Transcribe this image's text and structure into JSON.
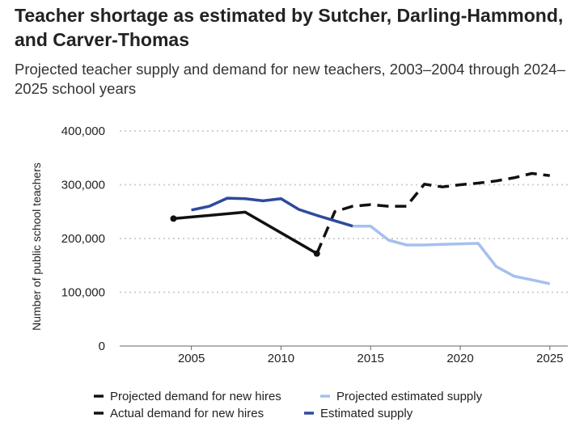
{
  "chart_data": {
    "type": "line",
    "title": "Teacher shortage as estimated by Sutcher, Darling-Hammond, and Carver-Thomas",
    "subtitle": "Projected teacher supply and demand for new teachers, 2003–2004 through 2024–2025 school years",
    "xlabel": "",
    "ylabel": "Number of public school teachers",
    "xlim": [
      2001,
      2026
    ],
    "ylim": [
      0,
      400000
    ],
    "x_ticks": [
      "2005",
      "2010",
      "2015",
      "2020",
      "2025"
    ],
    "y_ticks": [
      "0",
      "100,000",
      "200,000",
      "300,000",
      "400,000"
    ],
    "grid": true,
    "legend_position": "bottom",
    "series": [
      {
        "name": "Projected demand for new hires",
        "color": "#111111",
        "style": "dashed",
        "x": [
          2012,
          2013,
          2014,
          2015,
          2016,
          2017,
          2018,
          2019,
          2020,
          2021,
          2022,
          2023,
          2024,
          2025
        ],
        "y": [
          172000,
          250000,
          260000,
          263000,
          260000,
          260000,
          301000,
          296000,
          300000,
          303000,
          307000,
          313000,
          321000,
          317000
        ]
      },
      {
        "name": "Projected estimated supply",
        "color": "#a4c0ee",
        "style": "solid",
        "x": [
          2014,
          2015,
          2016,
          2017,
          2018,
          2019,
          2020,
          2021,
          2022,
          2023,
          2024,
          2025
        ],
        "y": [
          223000,
          223000,
          197000,
          188000,
          188000,
          189000,
          190000,
          191000,
          148000,
          130000,
          123000,
          116000
        ]
      },
      {
        "name": "Actual demand for new hires",
        "color": "#111111",
        "style": "solid",
        "x": [
          2004,
          2008,
          2012
        ],
        "y": [
          237000,
          249000,
          172000
        ]
      },
      {
        "name": "Estimated supply",
        "color": "#2e4a9e",
        "style": "solid",
        "x": [
          2005,
          2006,
          2007,
          2008,
          2009,
          2010,
          2011,
          2012,
          2013,
          2014
        ],
        "y": [
          253000,
          260000,
          275000,
          274000,
          270000,
          274000,
          254000,
          243000,
          233000,
          223000
        ]
      }
    ]
  }
}
